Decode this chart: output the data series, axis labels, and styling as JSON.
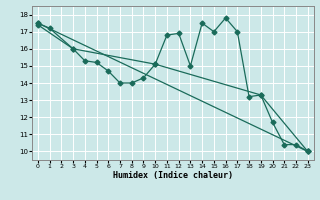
{
  "xlabel": "Humidex (Indice chaleur)",
  "x_ticks": [
    0,
    1,
    2,
    3,
    4,
    5,
    6,
    7,
    8,
    9,
    10,
    11,
    12,
    13,
    14,
    15,
    16,
    17,
    18,
    19,
    20,
    21,
    22,
    23
  ],
  "xlim": [
    -0.5,
    23.5
  ],
  "ylim": [
    9.5,
    18.5
  ],
  "yticks": [
    10,
    11,
    12,
    13,
    14,
    15,
    16,
    17,
    18
  ],
  "bg_color": "#cce8e8",
  "grid_color": "#ffffff",
  "line_color": "#1a6b5a",
  "line1_x": [
    0,
    23
  ],
  "line1_y": [
    17.5,
    10.0
  ],
  "line2_x": [
    0,
    3,
    10,
    19,
    23
  ],
  "line2_y": [
    17.4,
    16.0,
    15.1,
    13.3,
    10.0
  ],
  "line3_x": [
    0,
    1,
    3,
    4,
    5,
    6,
    7,
    8,
    9,
    10,
    11,
    12,
    13,
    14,
    15,
    16,
    17,
    18,
    19,
    20,
    21,
    22,
    23
  ],
  "line3_y": [
    17.5,
    17.2,
    16.0,
    15.3,
    15.2,
    14.7,
    14.0,
    14.0,
    14.3,
    15.1,
    16.8,
    16.9,
    15.0,
    17.5,
    17.0,
    17.8,
    17.0,
    13.2,
    13.3,
    11.7,
    10.4,
    10.4,
    10.0
  ],
  "markersize": 2.5,
  "linewidth": 0.9,
  "tick_fontsize": 5.0,
  "xlabel_fontsize": 6.0
}
